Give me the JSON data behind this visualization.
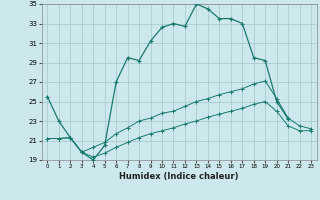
{
  "title": "",
  "xlabel": "Humidex (Indice chaleur)",
  "bg_color": "#cce8ec",
  "grid_color": "#aacccc",
  "line_color": "#1a7a6e",
  "xlim": [
    -0.5,
    23.5
  ],
  "ylim": [
    19,
    35
  ],
  "xticks": [
    0,
    1,
    2,
    3,
    4,
    5,
    6,
    7,
    8,
    9,
    10,
    11,
    12,
    13,
    14,
    15,
    16,
    17,
    18,
    19,
    20,
    21,
    22,
    23
  ],
  "yticks": [
    19,
    21,
    23,
    25,
    27,
    29,
    31,
    33,
    35
  ],
  "series1_x": [
    0,
    1,
    2,
    3,
    4,
    5,
    6,
    7,
    8,
    9,
    10,
    11,
    12,
    13,
    14,
    15,
    16,
    17,
    18,
    19,
    20,
    21
  ],
  "series1_y": [
    25.5,
    23.0,
    21.3,
    19.8,
    19.0,
    20.5,
    27.0,
    29.5,
    29.2,
    31.2,
    32.6,
    33.0,
    32.7,
    35.0,
    34.5,
    33.5,
    33.5,
    33.0,
    29.5,
    29.2,
    25.0,
    23.2
  ],
  "series2_x": [
    0,
    1,
    2,
    3,
    4,
    5,
    6,
    7,
    8,
    9,
    10,
    11,
    12,
    13,
    14,
    15,
    16,
    17,
    18,
    19,
    20,
    21,
    22,
    23
  ],
  "series2_y": [
    21.2,
    21.2,
    21.3,
    19.8,
    20.3,
    20.8,
    21.7,
    22.3,
    23.0,
    23.3,
    23.8,
    24.0,
    24.5,
    25.0,
    25.3,
    25.7,
    26.0,
    26.3,
    26.8,
    27.1,
    25.3,
    23.3,
    22.5,
    22.2
  ],
  "series3_x": [
    0,
    1,
    2,
    3,
    4,
    5,
    6,
    7,
    8,
    9,
    10,
    11,
    12,
    13,
    14,
    15,
    16,
    17,
    18,
    19,
    20,
    21,
    22,
    23
  ],
  "series3_y": [
    21.2,
    21.2,
    21.3,
    19.8,
    19.3,
    19.7,
    20.3,
    20.8,
    21.3,
    21.7,
    22.0,
    22.3,
    22.7,
    23.0,
    23.4,
    23.7,
    24.0,
    24.3,
    24.7,
    25.0,
    24.0,
    22.5,
    22.0,
    22.0
  ]
}
